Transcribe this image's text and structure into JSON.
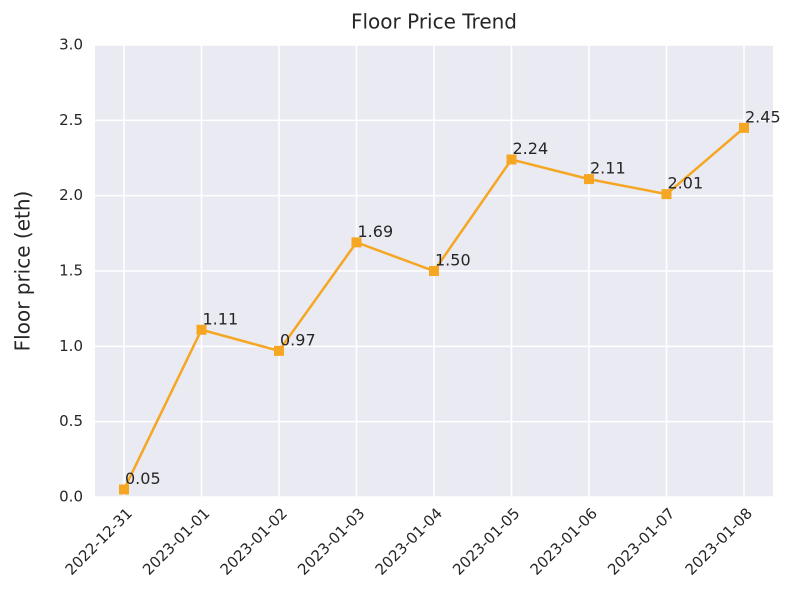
{
  "chart_data": {
    "type": "line",
    "title": "Floor Price Trend",
    "y_label": "Floor price (eth)",
    "categories": [
      "2022-12-31",
      "2023-01-01",
      "2023-01-02",
      "2023-01-03",
      "2023-01-04",
      "2023-01-05",
      "2023-01-06",
      "2023-01-07",
      "2023-01-08"
    ],
    "values": [
      0.05,
      1.11,
      0.97,
      1.69,
      1.5,
      2.24,
      2.11,
      2.01,
      2.45
    ],
    "value_labels": [
      "0.05",
      "1.11",
      "0.97",
      "1.69",
      "1.50",
      "2.24",
      "2.11",
      "2.01",
      "2.45"
    ],
    "color": "#f5a623",
    "marker": "square",
    "ylim": [
      0,
      3
    ],
    "yticks": [
      {
        "value": 0,
        "label": "0.0"
      },
      0.5,
      {
        "value": 1,
        "label": "1.0"
      },
      1.5,
      {
        "value": 2,
        "label": "2.0"
      },
      2.5,
      {
        "value": 3,
        "label": "3.0"
      }
    ],
    "grid": true
  }
}
